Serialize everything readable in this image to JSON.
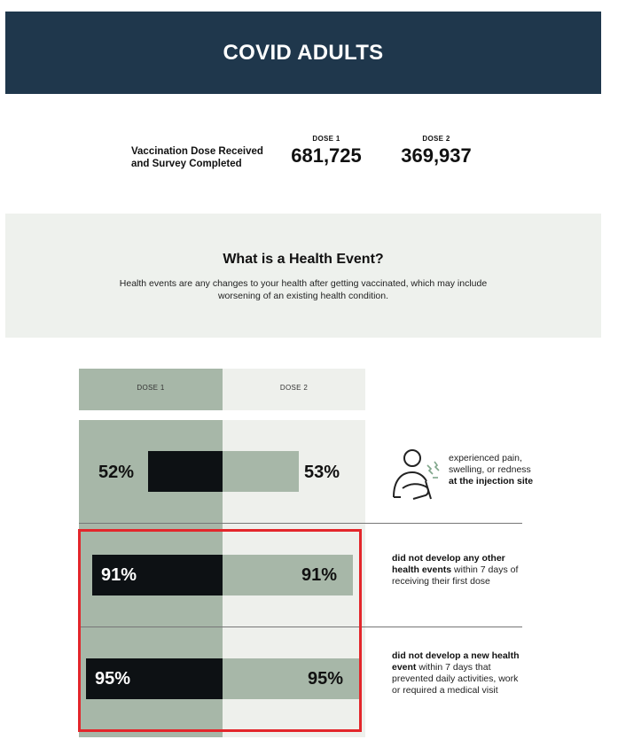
{
  "header": {
    "title": "COVID ADULTS"
  },
  "stats": {
    "label": "Vaccination Dose Received and Survey Completed",
    "dose1": {
      "label": "DOSE 1",
      "value": "681,725"
    },
    "dose2": {
      "label": "DOSE 2",
      "value": "369,937"
    }
  },
  "info": {
    "title": "What is a Health Event?",
    "description": "Health events are any changes to your health after getting vaccinated, which may include worsening of an existing health condition."
  },
  "chart_data": {
    "type": "bar",
    "orientation": "diverging-horizontal",
    "series_labels": [
      "DOSE 1",
      "DOSE 2"
    ],
    "ylim": [
      0,
      100
    ],
    "rows": [
      {
        "dose1_value": 52,
        "dose2_value": 53,
        "dose1_label": "52%",
        "dose2_label": "53%",
        "desc_pre": "experienced pain, swelling, or redness ",
        "desc_bold": "at the injection site",
        "desc_post": ""
      },
      {
        "dose1_value": 91,
        "dose2_value": 91,
        "dose1_label": "91%",
        "dose2_label": "91%",
        "desc_pre": "",
        "desc_bold": "did not develop any other health events",
        "desc_post": " within 7 days of receiving their first dose"
      },
      {
        "dose1_value": 95,
        "dose2_value": 95,
        "dose1_label": "95%",
        "dose2_label": "95%",
        "desc_pre": "",
        "desc_bold": "did not develop a new health event",
        "desc_post": " within 7 days that prevented daily activities, work or required a medical visit"
      }
    ]
  },
  "colors": {
    "header_bg": "#1f374c",
    "dose1_bar": "#0d1114",
    "dose2_bar": "#a7b7a8",
    "highlight": "#e3262b"
  }
}
